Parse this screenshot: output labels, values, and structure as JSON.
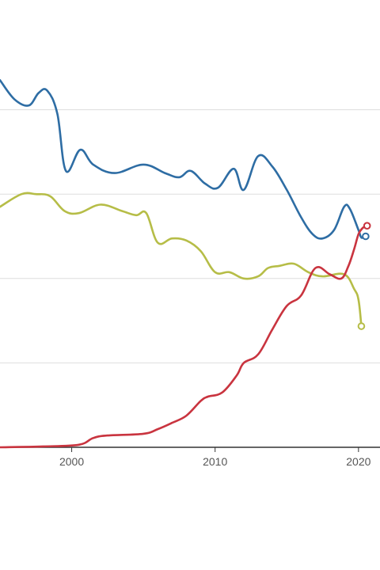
{
  "chart_data": {
    "type": "line",
    "title": "",
    "xlabel": "",
    "ylabel": "",
    "xlim": [
      1995,
      2021.5
    ],
    "ylim": [
      0,
      100
    ],
    "grid": true,
    "legend": "none",
    "x_ticks": [
      2000,
      2010,
      2020
    ],
    "x_tick_labels": [
      "2000",
      "2010",
      "2020"
    ],
    "colors": {
      "grid": "#dddddd",
      "axis": "#333333",
      "tick_text": "#555555"
    },
    "series": [
      {
        "color": "#2e6da4",
        "end_marker": true,
        "points": [
          [
            1995,
            87.0
          ],
          [
            1996,
            82.5
          ],
          [
            1997,
            81.0
          ],
          [
            1997.7,
            84.0
          ],
          [
            1998.3,
            84.5
          ],
          [
            1999,
            79.0
          ],
          [
            1999.6,
            65.5
          ],
          [
            2000.6,
            70.5
          ],
          [
            2001.5,
            67.0
          ],
          [
            2003,
            65.0
          ],
          [
            2005,
            67.0
          ],
          [
            2006.5,
            65.0
          ],
          [
            2007.5,
            64.0
          ],
          [
            2008.3,
            65.5
          ],
          [
            2009.3,
            62.5
          ],
          [
            2010.2,
            61.5
          ],
          [
            2011.3,
            66.0
          ],
          [
            2012,
            61.0
          ],
          [
            2013,
            69.0
          ],
          [
            2014,
            66.5
          ],
          [
            2015,
            61.0
          ],
          [
            2016,
            54.5
          ],
          [
            2016.8,
            50.5
          ],
          [
            2017.5,
            49.5
          ],
          [
            2018.3,
            51.5
          ],
          [
            2019,
            57.0
          ],
          [
            2019.4,
            56.5
          ],
          [
            2020,
            51.5
          ],
          [
            2020.2,
            49.7
          ],
          [
            2020.5,
            50.0
          ]
        ]
      },
      {
        "color": "#b6bd47",
        "end_marker": true,
        "points": [
          [
            1995,
            57.0
          ],
          [
            1996.5,
            60.0
          ],
          [
            1997.5,
            60.0
          ],
          [
            1998.5,
            59.5
          ],
          [
            1999.5,
            56.0
          ],
          [
            2000.5,
            55.5
          ],
          [
            2002,
            57.5
          ],
          [
            2003.5,
            56.0
          ],
          [
            2004.5,
            55.0
          ],
          [
            2005.2,
            55.5
          ],
          [
            2006,
            48.5
          ],
          [
            2007,
            49.5
          ],
          [
            2008,
            49.0
          ],
          [
            2009,
            46.5
          ],
          [
            2010,
            41.5
          ],
          [
            2011,
            41.5
          ],
          [
            2012,
            40.0
          ],
          [
            2013,
            40.5
          ],
          [
            2013.7,
            42.5
          ],
          [
            2014.5,
            43.0
          ],
          [
            2015.5,
            43.5
          ],
          [
            2016.5,
            41.5
          ],
          [
            2017.5,
            40.5
          ],
          [
            2019,
            41.0
          ],
          [
            2019.7,
            37.5
          ],
          [
            2020,
            35.0
          ],
          [
            2020.2,
            28.7
          ]
        ]
      },
      {
        "color": "#c9343f",
        "end_marker": true,
        "points": [
          [
            1995,
            0.0
          ],
          [
            1998,
            0.2
          ],
          [
            2000.5,
            0.6
          ],
          [
            2001.5,
            2.2
          ],
          [
            2002.5,
            2.8
          ],
          [
            2005,
            3.2
          ],
          [
            2006,
            4.3
          ],
          [
            2007,
            5.8
          ],
          [
            2008,
            7.5
          ],
          [
            2009,
            11.0
          ],
          [
            2009.5,
            12.0
          ],
          [
            2010.5,
            13.0
          ],
          [
            2011.5,
            17.0
          ],
          [
            2012,
            20.0
          ],
          [
            2013,
            22.0
          ],
          [
            2014,
            28.0
          ],
          [
            2015,
            33.5
          ],
          [
            2016,
            36.0
          ],
          [
            2017,
            42.5
          ],
          [
            2018,
            41.0
          ],
          [
            2018.8,
            40.0
          ],
          [
            2019.3,
            43.0
          ],
          [
            2019.7,
            47.0
          ],
          [
            2020,
            50.5
          ],
          [
            2020.3,
            52.0
          ],
          [
            2020.6,
            52.5
          ]
        ]
      }
    ]
  }
}
